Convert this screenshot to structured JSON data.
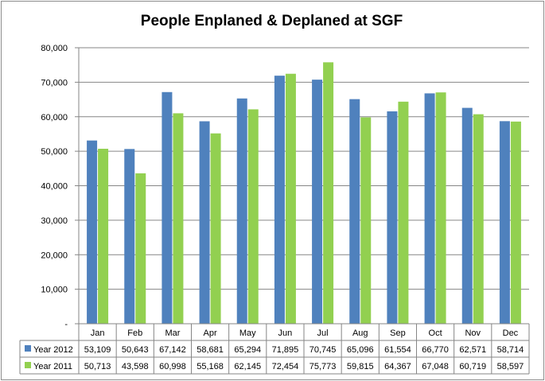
{
  "chart_data": {
    "type": "bar",
    "title": "People Enplaned & Deplaned at SGF",
    "xlabel": "",
    "ylabel": "",
    "categories": [
      "Jan",
      "Feb",
      "Mar",
      "Apr",
      "May",
      "Jun",
      "Jul",
      "Aug",
      "Sep",
      "Oct",
      "Nov",
      "Dec"
    ],
    "ylim": [
      0,
      80000
    ],
    "yticks": [
      0,
      10000,
      20000,
      30000,
      40000,
      50000,
      60000,
      70000,
      80000
    ],
    "ytick_labels": [
      "-",
      "10,000",
      "20,000",
      "30,000",
      "40,000",
      "50,000",
      "60,000",
      "70,000",
      "80,000"
    ],
    "grid": true,
    "legend": "data-table",
    "series": [
      {
        "name": "Year 2012",
        "color": "#4f81bd",
        "values": [
          53109,
          50643,
          67142,
          58681,
          65294,
          71895,
          70745,
          65096,
          61554,
          66770,
          62571,
          58714
        ],
        "labels": [
          "53,109",
          "50,643",
          "67,142",
          "58,681",
          "65,294",
          "71,895",
          "70,745",
          "65,096",
          "61,554",
          "66,770",
          "62,571",
          "58,714"
        ]
      },
      {
        "name": "Year 2011",
        "color": "#92d050",
        "values": [
          50713,
          43598,
          60998,
          55168,
          62145,
          72454,
          75773,
          59815,
          64367,
          67048,
          60719,
          58597
        ],
        "labels": [
          "50,713",
          "43,598",
          "60,998",
          "55,168",
          "62,145",
          "72,454",
          "75,773",
          "59,815",
          "64,367",
          "67,048",
          "60,719",
          "58,597"
        ]
      }
    ]
  }
}
